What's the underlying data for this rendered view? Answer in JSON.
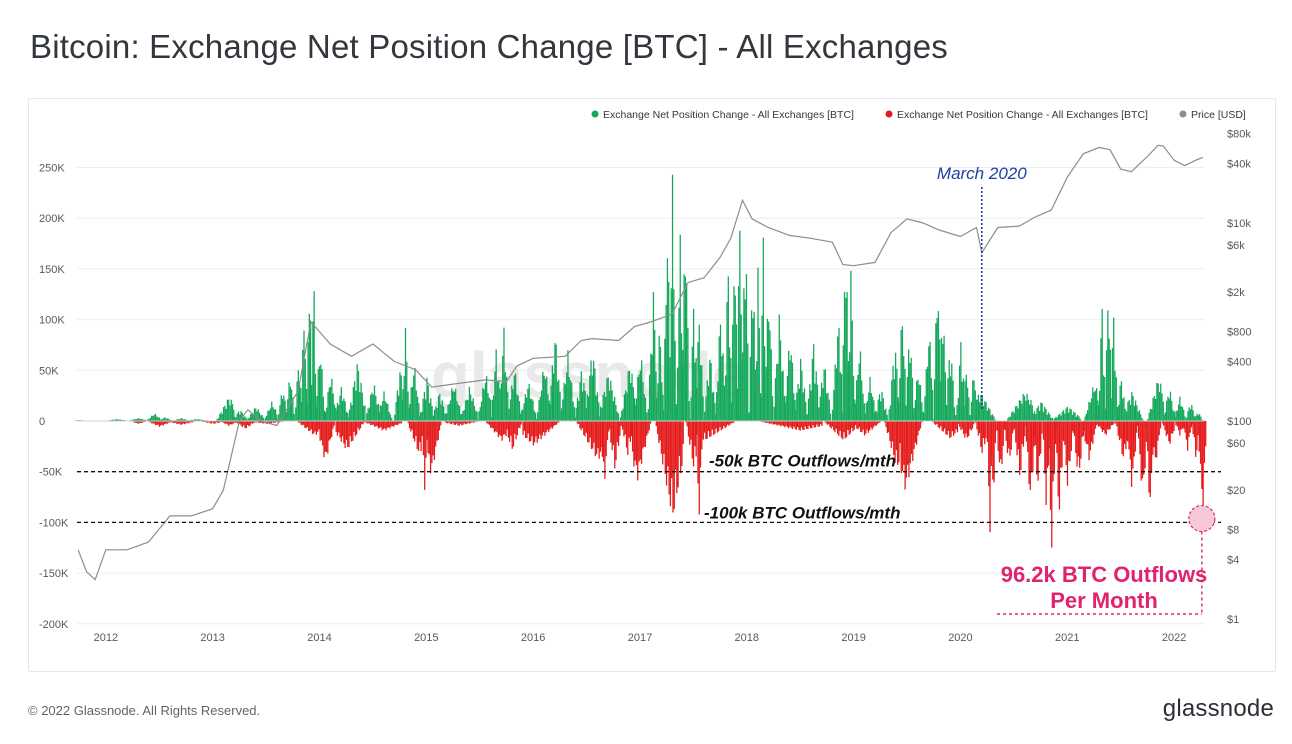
{
  "header": {
    "title": "Bitcoin: Exchange Net Position Change [BTC] - All Exchanges"
  },
  "footer": {
    "copyright": "© 2022 Glassnode. All Rights Reserved.",
    "logo_text": "glassnode"
  },
  "watermark": "glassnode",
  "colors": {
    "inflow": "#14a85a",
    "outflow": "#e51a1a",
    "price": "#8d8d8d",
    "annotation_blue": "#1e3fa0",
    "annotation_pink": "#e0236f"
  },
  "chart_data": {
    "type": "bar",
    "title": "Bitcoin: Exchange Net Position Change [BTC] - All Exchanges",
    "legend_position": "top-right",
    "legend": [
      {
        "label": "Exchange Net Position Change - All Exchanges [BTC]",
        "color": "#14a85a"
      },
      {
        "label": "Exchange Net Position Change - All Exchanges [BTC]",
        "color": "#e51a1a"
      },
      {
        "label": "Price [USD]",
        "color": "#8d8d8d"
      }
    ],
    "x_ticks": [
      "2012",
      "2013",
      "2014",
      "2015",
      "2016",
      "2017",
      "2018",
      "2019",
      "2020",
      "2021",
      "2022"
    ],
    "xlim": [
      2011.73,
      2022.28
    ],
    "y_left": {
      "ticks": [
        "250K",
        "200K",
        "150K",
        "100K",
        "50K",
        "0",
        "-50K",
        "-100K",
        "-150K",
        "-200K"
      ],
      "ylim": [
        -200000,
        255000
      ]
    },
    "y_right": {
      "scale": "log",
      "ticks": [
        "$80k",
        "$40k",
        "$10k",
        "$6k",
        "$2k",
        "$800",
        "$400",
        "$100",
        "$60",
        "$20",
        "$8",
        "$4",
        "$1"
      ]
    },
    "grid": true,
    "series": [
      {
        "name": "Exchange Net Position Change - All Exchanges [BTC]",
        "kind": "bar",
        "points": [
          [
            2011.75,
            1000
          ],
          [
            2011.9,
            500
          ],
          [
            2012.1,
            2000
          ],
          [
            2012.3,
            3000
          ],
          [
            2012.45,
            8000
          ],
          [
            2012.55,
            4000
          ],
          [
            2012.7,
            3000
          ],
          [
            2012.85,
            2000
          ],
          [
            2013.15,
            25000
          ],
          [
            2013.25,
            12000
          ],
          [
            2013.4,
            15000
          ],
          [
            2013.55,
            20000
          ],
          [
            2013.65,
            35000
          ],
          [
            2013.72,
            50000
          ],
          [
            2013.8,
            65000
          ],
          [
            2013.85,
            120000
          ],
          [
            2013.9,
            165000
          ],
          [
            2013.94,
            150000
          ],
          [
            2014.0,
            80000
          ],
          [
            2014.1,
            50000
          ],
          [
            2014.2,
            35000
          ],
          [
            2014.35,
            60000
          ],
          [
            2014.5,
            40000
          ],
          [
            2014.6,
            30000
          ],
          [
            2014.75,
            55000
          ],
          [
            2014.8,
            95000
          ],
          [
            2014.88,
            60000
          ],
          [
            2015.0,
            45000
          ],
          [
            2015.12,
            30000
          ],
          [
            2015.25,
            40000
          ],
          [
            2015.4,
            35000
          ],
          [
            2015.55,
            50000
          ],
          [
            2015.65,
            75000
          ],
          [
            2015.72,
            95000
          ],
          [
            2015.82,
            55000
          ],
          [
            2015.95,
            40000
          ],
          [
            2016.1,
            60000
          ],
          [
            2016.2,
            90000
          ],
          [
            2016.32,
            70000
          ],
          [
            2016.45,
            55000
          ],
          [
            2016.55,
            75000
          ],
          [
            2016.7,
            50000
          ],
          [
            2016.9,
            60000
          ],
          [
            2017.0,
            70000
          ],
          [
            2017.12,
            130000
          ],
          [
            2017.18,
            100000
          ],
          [
            2017.25,
            210000
          ],
          [
            2017.3,
            250000
          ],
          [
            2017.37,
            190000
          ],
          [
            2017.42,
            215000
          ],
          [
            2017.5,
            130000
          ],
          [
            2017.55,
            110000
          ],
          [
            2017.65,
            70000
          ],
          [
            2017.75,
            115000
          ],
          [
            2017.82,
            165000
          ],
          [
            2017.88,
            200000
          ],
          [
            2017.93,
            230000
          ],
          [
            2017.98,
            215000
          ],
          [
            2018.05,
            170000
          ],
          [
            2018.1,
            160000
          ],
          [
            2018.15,
            195000
          ],
          [
            2018.2,
            140000
          ],
          [
            2018.3,
            110000
          ],
          [
            2018.4,
            90000
          ],
          [
            2018.5,
            65000
          ],
          [
            2018.62,
            80000
          ],
          [
            2018.72,
            60000
          ],
          [
            2018.85,
            105000
          ],
          [
            2018.92,
            200000
          ],
          [
            2018.97,
            155000
          ],
          [
            2019.05,
            80000
          ],
          [
            2019.15,
            45000
          ],
          [
            2019.25,
            35000
          ],
          [
            2019.38,
            80000
          ],
          [
            2019.45,
            120000
          ],
          [
            2019.52,
            95000
          ],
          [
            2019.6,
            55000
          ],
          [
            2019.7,
            95000
          ],
          [
            2019.78,
            160000
          ],
          [
            2019.83,
            130000
          ],
          [
            2019.9,
            80000
          ],
          [
            2020.0,
            85000
          ],
          [
            2020.05,
            60000
          ],
          [
            2020.12,
            55000
          ],
          [
            2020.18,
            30000
          ],
          [
            2020.6,
            30000
          ],
          [
            2020.75,
            20000
          ],
          [
            2021.0,
            15000
          ],
          [
            2021.25,
            40000
          ],
          [
            2021.32,
            120000
          ],
          [
            2021.38,
            150000
          ],
          [
            2021.43,
            115000
          ],
          [
            2021.5,
            45000
          ],
          [
            2021.6,
            30000
          ],
          [
            2021.85,
            45000
          ],
          [
            2021.95,
            35000
          ],
          [
            2022.05,
            25000
          ],
          [
            2022.15,
            20000
          ],
          [
            2022.22,
            10000
          ]
        ]
      },
      {
        "name": "Exchange Net Position Change - All Exchanges [BTC]",
        "kind": "bar",
        "points": [
          [
            2012.3,
            -3000
          ],
          [
            2012.5,
            -6000
          ],
          [
            2012.7,
            -4000
          ],
          [
            2013.0,
            -3000
          ],
          [
            2013.15,
            -5000
          ],
          [
            2013.3,
            -8000
          ],
          [
            2013.5,
            -3000
          ],
          [
            2013.95,
            -15000
          ],
          [
            2014.05,
            -42000
          ],
          [
            2014.25,
            -30000
          ],
          [
            2014.6,
            -10000
          ],
          [
            2014.93,
            -35000
          ],
          [
            2014.98,
            -70000
          ],
          [
            2015.04,
            -55000
          ],
          [
            2015.3,
            -5000
          ],
          [
            2015.7,
            -20000
          ],
          [
            2015.8,
            -30000
          ],
          [
            2016.0,
            -25000
          ],
          [
            2016.6,
            -40000
          ],
          [
            2016.66,
            -65000
          ],
          [
            2016.76,
            -50000
          ],
          [
            2016.88,
            -35000
          ],
          [
            2016.97,
            -60000
          ],
          [
            2017.3,
            -100000
          ],
          [
            2017.5,
            -50000
          ],
          [
            2017.55,
            -108000
          ],
          [
            2017.6,
            -20000
          ],
          [
            2018.5,
            -10000
          ],
          [
            2018.9,
            -20000
          ],
          [
            2019.1,
            -15000
          ],
          [
            2019.4,
            -50000
          ],
          [
            2019.48,
            -70000
          ],
          [
            2019.9,
            -18000
          ],
          [
            2020.05,
            -20000
          ],
          [
            2020.2,
            -35000
          ],
          [
            2020.27,
            -115000
          ],
          [
            2020.3,
            -85000
          ],
          [
            2020.37,
            -60000
          ],
          [
            2020.45,
            -45000
          ],
          [
            2020.55,
            -60000
          ],
          [
            2020.65,
            -85000
          ],
          [
            2020.72,
            -70000
          ],
          [
            2020.8,
            -95000
          ],
          [
            2020.85,
            -140000
          ],
          [
            2020.92,
            -100000
          ],
          [
            2021.0,
            -70000
          ],
          [
            2021.1,
            -60000
          ],
          [
            2021.2,
            -40000
          ],
          [
            2021.35,
            -15000
          ],
          [
            2021.52,
            -40000
          ],
          [
            2021.6,
            -70000
          ],
          [
            2021.7,
            -80000
          ],
          [
            2021.77,
            -100000
          ],
          [
            2021.82,
            -45000
          ],
          [
            2021.95,
            -25000
          ],
          [
            2022.05,
            -15000
          ],
          [
            2022.12,
            -30000
          ],
          [
            2022.2,
            -40000
          ],
          [
            2022.26,
            -96200
          ]
        ]
      },
      {
        "name": "Price [USD]",
        "kind": "line",
        "points": [
          [
            2011.74,
            5
          ],
          [
            2011.82,
            3
          ],
          [
            2011.9,
            2.5
          ],
          [
            2012.0,
            5
          ],
          [
            2012.2,
            5
          ],
          [
            2012.4,
            6
          ],
          [
            2012.6,
            11
          ],
          [
            2012.8,
            11
          ],
          [
            2013.0,
            13
          ],
          [
            2013.1,
            20
          ],
          [
            2013.25,
            100
          ],
          [
            2013.33,
            130
          ],
          [
            2013.45,
            100
          ],
          [
            2013.6,
            90
          ],
          [
            2013.8,
            200
          ],
          [
            2013.92,
            1000
          ],
          [
            2014.0,
            800
          ],
          [
            2014.1,
            600
          ],
          [
            2014.3,
            450
          ],
          [
            2014.5,
            600
          ],
          [
            2014.7,
            400
          ],
          [
            2014.9,
            330
          ],
          [
            2015.05,
            220
          ],
          [
            2015.3,
            240
          ],
          [
            2015.55,
            260
          ],
          [
            2015.75,
            250
          ],
          [
            2015.85,
            360
          ],
          [
            2016.0,
            430
          ],
          [
            2016.3,
            450
          ],
          [
            2016.45,
            650
          ],
          [
            2016.55,
            680
          ],
          [
            2016.8,
            650
          ],
          [
            2016.95,
            900
          ],
          [
            2017.1,
            1000
          ],
          [
            2017.3,
            1200
          ],
          [
            2017.45,
            2500
          ],
          [
            2017.6,
            2800
          ],
          [
            2017.75,
            4500
          ],
          [
            2017.85,
            7000
          ],
          [
            2017.96,
            17000
          ],
          [
            2018.05,
            11000
          ],
          [
            2018.2,
            9000
          ],
          [
            2018.4,
            7500
          ],
          [
            2018.6,
            7000
          ],
          [
            2018.8,
            6400
          ],
          [
            2018.9,
            3800
          ],
          [
            2019.0,
            3700
          ],
          [
            2019.2,
            4000
          ],
          [
            2019.35,
            8000
          ],
          [
            2019.5,
            11000
          ],
          [
            2019.65,
            10000
          ],
          [
            2019.8,
            8500
          ],
          [
            2020.0,
            7300
          ],
          [
            2020.15,
            9000
          ],
          [
            2020.2,
            5000
          ],
          [
            2020.35,
            9000
          ],
          [
            2020.55,
            9300
          ],
          [
            2020.7,
            11500
          ],
          [
            2020.85,
            13500
          ],
          [
            2021.0,
            29000
          ],
          [
            2021.15,
            50000
          ],
          [
            2021.3,
            58000
          ],
          [
            2021.4,
            55000
          ],
          [
            2021.5,
            35000
          ],
          [
            2021.6,
            33000
          ],
          [
            2021.75,
            47000
          ],
          [
            2021.85,
            61000
          ],
          [
            2021.9,
            60000
          ],
          [
            2022.0,
            43000
          ],
          [
            2022.1,
            38000
          ],
          [
            2022.2,
            43000
          ],
          [
            2022.27,
            46000
          ]
        ]
      }
    ],
    "annotations": [
      {
        "text": "March 2020",
        "x": 2020.2,
        "color": "#1e3fa0"
      },
      {
        "text": "-50k BTC Outflows/mth",
        "y": -50000
      },
      {
        "text": "-100k BTC Outflows/mth",
        "y": -100000
      },
      {
        "text": "96.2k BTC Outflows",
        "text2": "Per Month",
        "x": 2022.26,
        "y": -96200,
        "color": "#e0236f"
      }
    ]
  }
}
